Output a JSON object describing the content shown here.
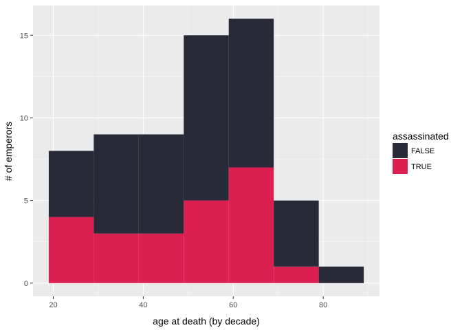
{
  "chart_data": {
    "type": "bar",
    "stacked": true,
    "bin_width": 10,
    "bins": [
      {
        "x_start": 19,
        "x_end": 29
      },
      {
        "x_start": 29,
        "x_end": 39
      },
      {
        "x_start": 39,
        "x_end": 49
      },
      {
        "x_start": 49,
        "x_end": 59
      },
      {
        "x_start": 59,
        "x_end": 69
      },
      {
        "x_start": 69,
        "x_end": 79
      },
      {
        "x_start": 79,
        "x_end": 89
      }
    ],
    "series": [
      {
        "name": "TRUE",
        "color": "#dc1f51",
        "values": [
          4,
          3,
          3,
          5,
          7,
          1,
          0
        ]
      },
      {
        "name": "FALSE",
        "color": "#272936",
        "values": [
          4,
          6,
          6,
          10,
          9,
          4,
          1
        ]
      }
    ],
    "xlabel": "age at death (by decade)",
    "ylabel": "# of emperors",
    "xlim": [
      15.5,
      92.5
    ],
    "ylim": [
      -0.8,
      16.8
    ],
    "x_ticks": [
      20,
      40,
      60,
      80
    ],
    "y_ticks": [
      0,
      5,
      10,
      15
    ],
    "x_tick_labels": [
      "20",
      "40",
      "60",
      "80"
    ],
    "y_tick_labels": [
      "0",
      "5",
      "10",
      "15"
    ],
    "grid": true,
    "legend": {
      "title": "assassinated",
      "position": "right",
      "entries": [
        {
          "label": "FALSE",
          "color": "#272936"
        },
        {
          "label": "TRUE",
          "color": "#dc1f51"
        }
      ]
    },
    "colors": {
      "panel": "#ebebeb",
      "grid_major": "#ffffff"
    }
  }
}
